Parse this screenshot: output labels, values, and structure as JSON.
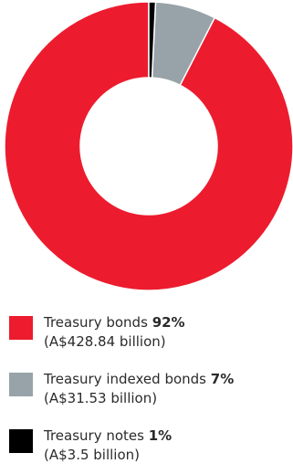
{
  "chart_data": {
    "type": "pie",
    "subtype": "donut",
    "categories": [
      "Treasury bonds",
      "Treasury indexed bonds",
      "Treasury notes"
    ],
    "values": [
      428.84,
      31.53,
      3.5
    ],
    "percent_labels": [
      "92%",
      "7%",
      "1%"
    ],
    "amount_labels": [
      "(A$428.84 billion)",
      "(A$31.53 billion)",
      "(A$3.5 billion)"
    ],
    "colors": [
      "#ec1c2e",
      "#97a3a8",
      "#000000"
    ],
    "legend_placement": "bottom"
  }
}
